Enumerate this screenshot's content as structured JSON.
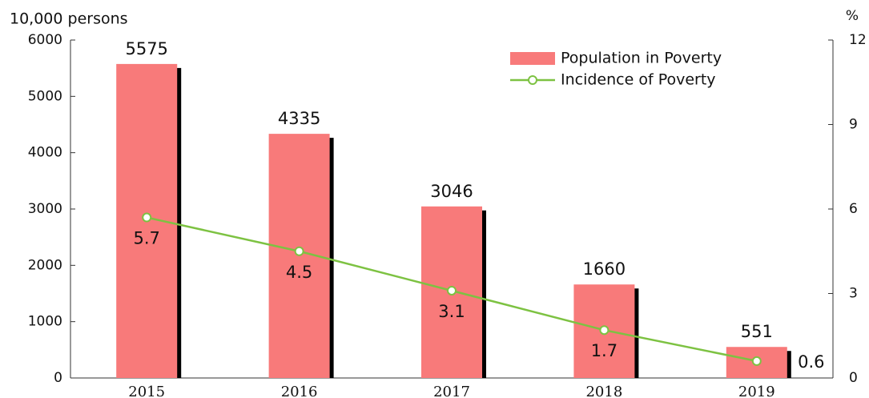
{
  "chart_data": {
    "type": "bar",
    "y_label": "10,000 persons",
    "y2_label": "%",
    "categories": [
      "2015",
      "2016",
      "2017",
      "2018",
      "2019"
    ],
    "series": [
      {
        "name": "Population in Poverty",
        "type": "bar",
        "color": "#f87a7a",
        "values": [
          5575,
          4335,
          3046,
          1660,
          551
        ]
      },
      {
        "name": "Incidence of Poverty",
        "type": "line",
        "axis": "y2",
        "color": "#7dc242",
        "values": [
          5.7,
          4.5,
          3.1,
          1.7,
          0.6
        ]
      }
    ],
    "ylim": [
      0,
      6000
    ],
    "yticks": [
      0,
      1000,
      2000,
      3000,
      4000,
      5000,
      6000
    ],
    "y2lim": [
      0,
      12
    ],
    "y2ticks": [
      0,
      3,
      6,
      9,
      12
    ],
    "legend": "upper right"
  }
}
